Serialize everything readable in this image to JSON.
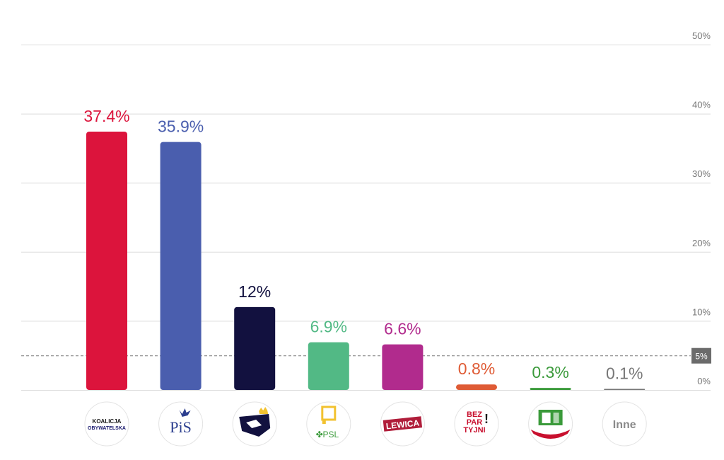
{
  "chart_data": {
    "type": "bar",
    "ylim": [
      0,
      50
    ],
    "yticks": [
      0,
      10,
      20,
      30,
      40,
      50
    ],
    "ytick_labels": [
      "0%",
      "10%",
      "20%",
      "30%",
      "40%",
      "50%"
    ],
    "grid": true,
    "threshold": {
      "value": 5,
      "label": "5%"
    },
    "bars": [
      {
        "logo": "KO",
        "logo_lines": [
          "KOALICJA",
          "OBYWATELSKA"
        ],
        "value": 37.4,
        "label": "37.4%",
        "color": "#dc143c"
      },
      {
        "logo": "PiS",
        "logo_lines": [
          "PiS"
        ],
        "value": 35.9,
        "label": "35.9%",
        "color": "#4a5eae"
      },
      {
        "logo": "Konfederacja",
        "logo_lines": [],
        "value": 12,
        "label": "12%",
        "color": "#12113f"
      },
      {
        "logo": "PSL",
        "logo_lines": [
          "PSL"
        ],
        "value": 6.9,
        "label": "6.9%",
        "color": "#52b985"
      },
      {
        "logo": "Lewica",
        "logo_lines": [
          "LEWICA"
        ],
        "value": 6.6,
        "label": "6.6%",
        "color": "#b12b8d"
      },
      {
        "logo": "Bezpartyjni",
        "logo_lines": [
          "BEZ",
          "PAR",
          "TYJNI"
        ],
        "value": 0.8,
        "label": "0.8%",
        "color": "#df5b35"
      },
      {
        "logo": "Zieloni",
        "logo_lines": [],
        "value": 0.3,
        "label": "0.3%",
        "color": "#3a9a3a"
      },
      {
        "logo": "Inne",
        "logo_lines": [
          "Inne"
        ],
        "value": 0.1,
        "label": "0.1%",
        "color": "#777777"
      }
    ]
  }
}
